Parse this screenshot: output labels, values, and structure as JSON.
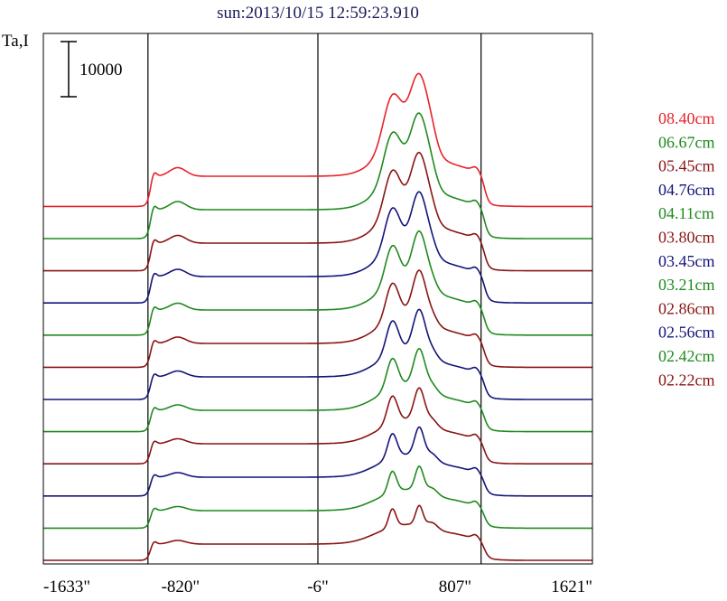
{
  "chart_data": {
    "type": "line",
    "title": "sun:2013/10/15 12:59:23.910",
    "ylabel": "Ta,I",
    "scale_bar_label": "10000",
    "xlim": [
      -1633,
      1621
    ],
    "x_ticks": [
      {
        "value": -1633,
        "label": "-1633\""
      },
      {
        "value": -820,
        "label": "-820\""
      },
      {
        "value": -6,
        "label": "-6\""
      },
      {
        "value": 807,
        "label": "807\""
      },
      {
        "value": 1621,
        "label": "1621\""
      }
    ],
    "vertical_lines": [
      -1013,
      -6,
      961
    ],
    "grid": false,
    "legend_position": "right",
    "series": [
      {
        "name": "08.40cm",
        "color": "#e8222a"
      },
      {
        "name": "06.67cm",
        "color": "#1f8a1f"
      },
      {
        "name": "05.45cm",
        "color": "#8a1414"
      },
      {
        "name": "04.76cm",
        "color": "#14147a"
      },
      {
        "name": "04.11cm",
        "color": "#1f8a1f"
      },
      {
        "name": "03.80cm",
        "color": "#8a1414"
      },
      {
        "name": "03.45cm",
        "color": "#14147a"
      },
      {
        "name": "03.21cm",
        "color": "#1f8a1f"
      },
      {
        "name": "02.86cm",
        "color": "#8a1414"
      },
      {
        "name": "02.56cm",
        "color": "#14147a"
      },
      {
        "name": "02.42cm",
        "color": "#1f8a1f"
      },
      {
        "name": "02.22cm",
        "color": "#8a1414"
      }
    ]
  }
}
